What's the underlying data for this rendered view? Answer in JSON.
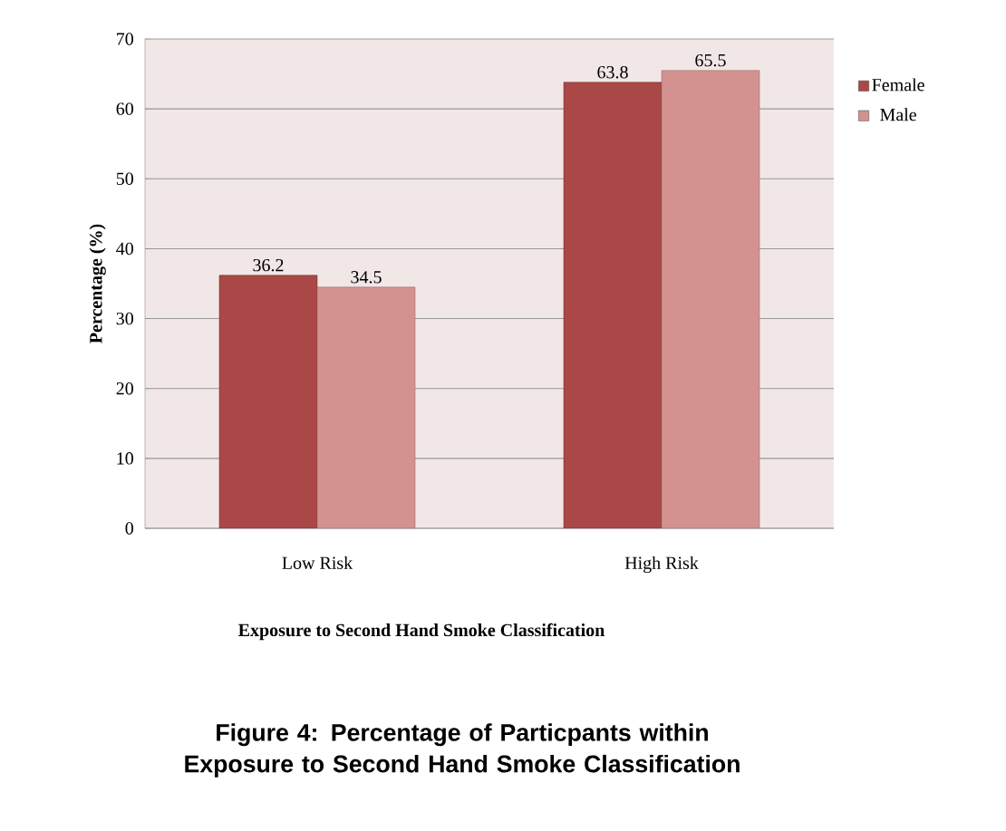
{
  "chart_data": {
    "type": "bar",
    "title": "Figure 4: Percentage of Particpants within Exposure to Second Hand Smoke Classification",
    "xlabel": "Exposure to Second Hand Smoke Classification",
    "ylabel": "Percentage (%)",
    "categories": [
      "Low Risk",
      "High Risk"
    ],
    "series": [
      {
        "name": "Female",
        "color": "#a94846",
        "values": [
          36.2,
          63.8
        ]
      },
      {
        "name": "Male",
        "color": "#d39290",
        "values": [
          34.5,
          65.5
        ]
      }
    ],
    "ylim": [
      0,
      70
    ],
    "yticks": [
      0,
      10,
      20,
      30,
      40,
      50,
      60,
      70
    ],
    "grid": "y",
    "legend": "right",
    "data_labels": true
  }
}
